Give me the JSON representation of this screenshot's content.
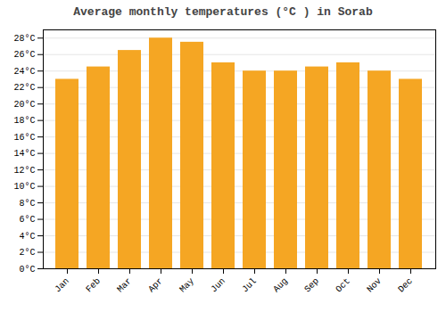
{
  "chart_data": {
    "type": "bar",
    "title": "Average monthly temperatures (°C ) in Sorab",
    "categories": [
      "Jan",
      "Feb",
      "Mar",
      "Apr",
      "May",
      "Jun",
      "Jul",
      "Aug",
      "Sep",
      "Oct",
      "Nov",
      "Dec"
    ],
    "values": [
      23,
      24.5,
      26.5,
      28,
      27.5,
      25,
      24,
      24,
      24.5,
      25,
      24,
      23
    ],
    "color": "#F5A623",
    "ylim": [
      0,
      29
    ],
    "yticks": [
      {
        "value": 0,
        "label": "0°C"
      },
      {
        "value": 2,
        "label": "2°C"
      },
      {
        "value": 4,
        "label": "4°C"
      },
      {
        "value": 6,
        "label": "6°C"
      },
      {
        "value": 8,
        "label": "8°C"
      },
      {
        "value": 10,
        "label": "10°C"
      },
      {
        "value": 12,
        "label": "12°C"
      },
      {
        "value": 14,
        "label": "14°C"
      },
      {
        "value": 16,
        "label": "16°C"
      },
      {
        "value": 18,
        "label": "18°C"
      },
      {
        "value": 20,
        "label": "20°C"
      },
      {
        "value": 22,
        "label": "22°C"
      },
      {
        "value": 24,
        "label": "24°C"
      },
      {
        "value": 26,
        "label": "26°C"
      },
      {
        "value": 28,
        "label": "28°C"
      }
    ],
    "grid": true
  }
}
